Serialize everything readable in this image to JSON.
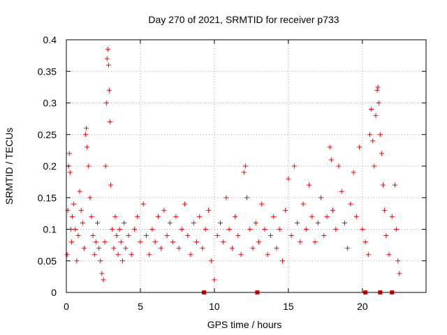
{
  "chart_data": {
    "type": "scatter",
    "title": "Day 270 of 2021, SRMTID for receiver p733",
    "xlabel": "GPS time / hours",
    "ylabel": "SRMTID / TECUs",
    "xlim": [
      0,
      24.3
    ],
    "ylim": [
      0,
      0.4
    ],
    "grid": true,
    "marker": "+",
    "color": "#ff0000",
    "x_ticks": [
      {
        "value": 0,
        "label": "0"
      },
      {
        "value": 5,
        "label": "5"
      },
      {
        "value": 10,
        "label": "10"
      },
      {
        "value": 15,
        "label": "15"
      },
      {
        "value": 20,
        "label": "20"
      }
    ],
    "y_ticks": [
      {
        "value": 0,
        "label": "0"
      },
      {
        "value": 0.05,
        "label": "0.05"
      },
      {
        "value": 0.1,
        "label": "0.1"
      },
      {
        "value": 0.15,
        "label": "0.15"
      },
      {
        "value": 0.2,
        "label": "0.2"
      },
      {
        "value": 0.25,
        "label": "0.25"
      },
      {
        "value": 0.3,
        "label": "0.3"
      },
      {
        "value": 0.35,
        "label": "0.35"
      },
      {
        "value": 0.4,
        "label": "0.4"
      }
    ],
    "zero_markers_x": [
      9.3,
      12.9,
      20.2,
      21.2,
      22.0
    ],
    "series": [
      {
        "name": "SRMTID",
        "points": [
          [
            0.05,
            0.06
          ],
          [
            0.1,
            0.13
          ],
          [
            0.15,
            0.2
          ],
          [
            0.2,
            0.22
          ],
          [
            0.25,
            0.19
          ],
          [
            0.3,
            0.1
          ],
          [
            0.35,
            0.08
          ],
          [
            0.4,
            0.12
          ],
          [
            0.5,
            0.14
          ],
          [
            0.6,
            0.1
          ],
          [
            0.7,
            0.05
          ],
          [
            0.8,
            0.09
          ],
          [
            0.9,
            0.16
          ],
          [
            1.0,
            0.13
          ],
          [
            1.1,
            0.11
          ],
          [
            1.2,
            0.07
          ],
          [
            1.3,
            0.25
          ],
          [
            1.35,
            0.26
          ],
          [
            1.4,
            0.23
          ],
          [
            1.5,
            0.2
          ],
          [
            1.6,
            0.15
          ],
          [
            1.7,
            0.12
          ],
          [
            1.8,
            0.09
          ],
          [
            1.9,
            0.06
          ],
          [
            2.0,
            0.08
          ],
          [
            2.1,
            0.11
          ],
          [
            2.2,
            0.07
          ],
          [
            2.3,
            0.05
          ],
          [
            2.4,
            0.03
          ],
          [
            2.5,
            0.02
          ],
          [
            2.6,
            0.08
          ],
          [
            2.65,
            0.2
          ],
          [
            2.7,
            0.3
          ],
          [
            2.75,
            0.37
          ],
          [
            2.8,
            0.385
          ],
          [
            2.85,
            0.36
          ],
          [
            2.9,
            0.32
          ],
          [
            2.95,
            0.27
          ],
          [
            3.0,
            0.17
          ],
          [
            3.1,
            0.1
          ],
          [
            3.2,
            0.07
          ],
          [
            3.3,
            0.12
          ],
          [
            3.4,
            0.09
          ],
          [
            3.5,
            0.06
          ],
          [
            3.6,
            0.1
          ],
          [
            3.7,
            0.08
          ],
          [
            3.8,
            0.05
          ],
          [
            3.9,
            0.11
          ],
          [
            4.0,
            0.07
          ],
          [
            4.2,
            0.09
          ],
          [
            4.4,
            0.06
          ],
          [
            4.6,
            0.1
          ],
          [
            4.8,
            0.12
          ],
          [
            5.0,
            0.08
          ],
          [
            5.2,
            0.14
          ],
          [
            5.4,
            0.09
          ],
          [
            5.6,
            0.06
          ],
          [
            5.8,
            0.1
          ],
          [
            6.0,
            0.08
          ],
          [
            6.2,
            0.12
          ],
          [
            6.4,
            0.07
          ],
          [
            6.6,
            0.13
          ],
          [
            6.8,
            0.09
          ],
          [
            7.0,
            0.11
          ],
          [
            7.2,
            0.08
          ],
          [
            7.4,
            0.12
          ],
          [
            7.6,
            0.07
          ],
          [
            7.8,
            0.1
          ],
          [
            8.0,
            0.14
          ],
          [
            8.2,
            0.09
          ],
          [
            8.4,
            0.06
          ],
          [
            8.6,
            0.11
          ],
          [
            8.8,
            0.08
          ],
          [
            9.0,
            0.12
          ],
          [
            9.2,
            0.07
          ],
          [
            9.4,
            0.1
          ],
          [
            9.6,
            0.13
          ],
          [
            9.8,
            0.05
          ],
          [
            10.0,
            0.02
          ],
          [
            10.2,
            0.09
          ],
          [
            10.4,
            0.11
          ],
          [
            10.6,
            0.08
          ],
          [
            10.8,
            0.15
          ],
          [
            11.0,
            0.1
          ],
          [
            11.2,
            0.07
          ],
          [
            11.4,
            0.12
          ],
          [
            11.6,
            0.09
          ],
          [
            11.8,
            0.06
          ],
          [
            12.0,
            0.19
          ],
          [
            12.1,
            0.2
          ],
          [
            12.2,
            0.15
          ],
          [
            12.4,
            0.1
          ],
          [
            12.6,
            0.07
          ],
          [
            12.8,
            0.11
          ],
          [
            13.0,
            0.08
          ],
          [
            13.2,
            0.14
          ],
          [
            13.4,
            0.1
          ],
          [
            13.6,
            0.06
          ],
          [
            13.8,
            0.09
          ],
          [
            14.0,
            0.12
          ],
          [
            14.2,
            0.07
          ],
          [
            14.4,
            0.1
          ],
          [
            14.6,
            0.05
          ],
          [
            14.8,
            0.13
          ],
          [
            15.0,
            0.18
          ],
          [
            15.2,
            0.09
          ],
          [
            15.4,
            0.2
          ],
          [
            15.6,
            0.11
          ],
          [
            15.8,
            0.08
          ],
          [
            16.0,
            0.14
          ],
          [
            16.2,
            0.1
          ],
          [
            16.4,
            0.17
          ],
          [
            16.6,
            0.12
          ],
          [
            16.8,
            0.08
          ],
          [
            17.0,
            0.11
          ],
          [
            17.2,
            0.15
          ],
          [
            17.4,
            0.09
          ],
          [
            17.6,
            0.12
          ],
          [
            17.8,
            0.23
          ],
          [
            17.9,
            0.21
          ],
          [
            18.0,
            0.13
          ],
          [
            18.2,
            0.1
          ],
          [
            18.4,
            0.2
          ],
          [
            18.6,
            0.16
          ],
          [
            18.8,
            0.11
          ],
          [
            19.0,
            0.07
          ],
          [
            19.2,
            0.14
          ],
          [
            19.4,
            0.19
          ],
          [
            19.6,
            0.12
          ],
          [
            19.8,
            0.23
          ],
          [
            20.0,
            0.1
          ],
          [
            20.2,
            0.08
          ],
          [
            20.4,
            0.06
          ],
          [
            20.5,
            0.25
          ],
          [
            20.6,
            0.29
          ],
          [
            20.7,
            0.24
          ],
          [
            20.8,
            0.2
          ],
          [
            20.9,
            0.28
          ],
          [
            21.0,
            0.32
          ],
          [
            21.05,
            0.325
          ],
          [
            21.1,
            0.3
          ],
          [
            21.2,
            0.25
          ],
          [
            21.3,
            0.22
          ],
          [
            21.4,
            0.17
          ],
          [
            21.5,
            0.13
          ],
          [
            21.6,
            0.09
          ],
          [
            21.8,
            0.06
          ],
          [
            22.0,
            0.12
          ],
          [
            22.2,
            0.17
          ],
          [
            22.3,
            0.1
          ],
          [
            22.4,
            0.05
          ],
          [
            22.5,
            0.03
          ]
        ]
      }
    ]
  }
}
